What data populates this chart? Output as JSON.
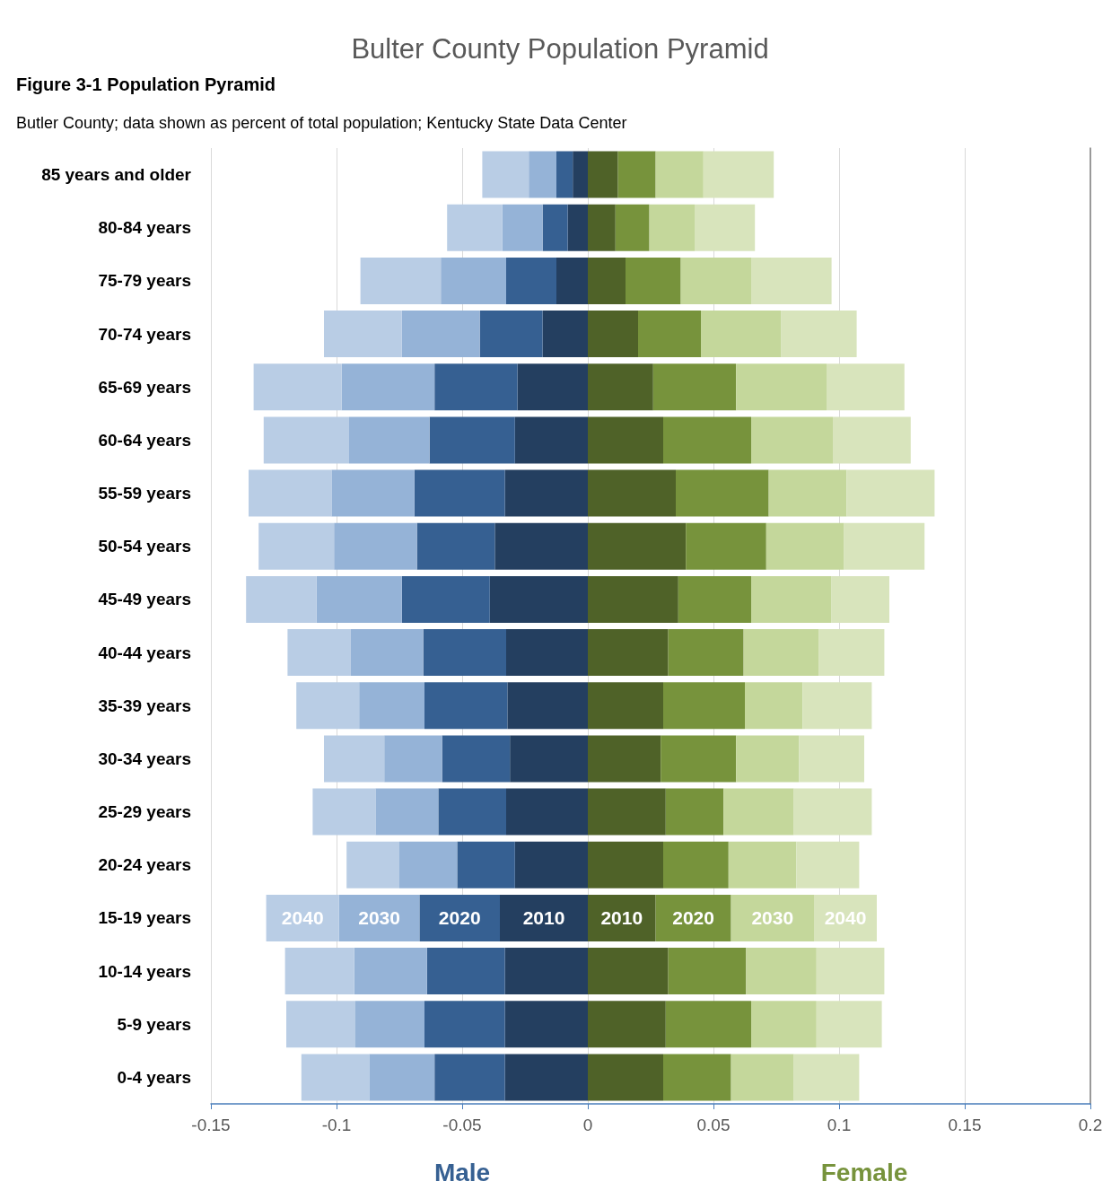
{
  "chart_data": {
    "type": "bar",
    "orientation": "horizontal",
    "stacked": true,
    "title": "Bulter County Population Pyramid",
    "subtitle": "Figure 3-1 Population Pyramid",
    "categories": [
      "85 years and older",
      "80-84 years",
      "75-79 years",
      "70-74 years",
      "65-69 years",
      "60-64 years",
      "55-59 years",
      "50-54 years",
      "45-49 years",
      "40-44 years",
      "35-39 years",
      "30-34 years",
      "25-29 years",
      "20-24 years",
      "15-19 years",
      "10-14 years",
      "5-9 years",
      "0-4 years"
    ],
    "series": [
      {
        "color": "#243f60",
        "values": [
          -0.006,
          -0.008,
          -0.0125,
          -0.018,
          -0.028,
          -0.029,
          -0.033,
          -0.037,
          -0.039,
          -0.0325,
          -0.032,
          -0.031,
          -0.0325,
          -0.029,
          -0.035,
          -0.033,
          -0.033,
          -0.033
        ]
      },
      {
        "color": "#366092",
        "values": [
          -0.0065,
          -0.01,
          -0.02,
          -0.025,
          -0.033,
          -0.034,
          -0.036,
          -0.031,
          -0.035,
          -0.033,
          -0.033,
          -0.027,
          -0.027,
          -0.023,
          -0.032,
          -0.031,
          -0.032,
          -0.028
        ]
      },
      {
        "color": "#95b3d7",
        "values": [
          -0.011,
          -0.016,
          -0.026,
          -0.031,
          -0.037,
          -0.032,
          -0.033,
          -0.033,
          -0.034,
          -0.029,
          -0.026,
          -0.023,
          -0.025,
          -0.023,
          -0.032,
          -0.029,
          -0.0275,
          -0.026
        ]
      },
      {
        "color": "#b9cde5",
        "values": [
          -0.0185,
          -0.022,
          -0.032,
          -0.031,
          -0.035,
          -0.034,
          -0.033,
          -0.03,
          -0.028,
          -0.025,
          -0.025,
          -0.024,
          -0.025,
          -0.021,
          -0.029,
          -0.0275,
          -0.0275,
          -0.027
        ]
      },
      {
        "color": "#4f6228",
        "values": [
          0.012,
          0.011,
          0.015,
          0.02,
          0.026,
          0.03,
          0.035,
          0.039,
          0.036,
          0.032,
          0.03,
          0.029,
          0.031,
          0.03,
          0.027,
          0.032,
          0.031,
          0.03
        ]
      },
      {
        "color": "#77933c",
        "values": [
          0.015,
          0.0135,
          0.022,
          0.025,
          0.033,
          0.035,
          0.037,
          0.032,
          0.029,
          0.03,
          0.0325,
          0.03,
          0.023,
          0.026,
          0.03,
          0.031,
          0.034,
          0.027
        ]
      },
      {
        "color": "#c4d79b",
        "values": [
          0.019,
          0.018,
          0.028,
          0.032,
          0.036,
          0.0325,
          0.031,
          0.031,
          0.032,
          0.03,
          0.023,
          0.025,
          0.028,
          0.027,
          0.033,
          0.028,
          0.026,
          0.025
        ]
      },
      {
        "color": "#d8e4bc",
        "values": [
          0.028,
          0.024,
          0.032,
          0.03,
          0.031,
          0.031,
          0.035,
          0.032,
          0.023,
          0.026,
          0.0275,
          0.026,
          0.031,
          0.025,
          0.025,
          0.027,
          0.026,
          0.026
        ]
      }
    ],
    "xlim": [
      -0.15,
      0.2
    ],
    "xticks": [
      -0.15,
      -0.1,
      -0.05,
      0,
      0.05,
      0.1,
      0.15,
      0.2
    ],
    "grid": "x",
    "annotations": [
      "Butler County; data shown as percent of total population; Kentucky State Data Center",
      "Male",
      "Female",
      {
        "text": "2040",
        "x": -0.1135,
        "y": "15-19 years"
      },
      {
        "text": "2030",
        "x": -0.083,
        "y": "15-19 years"
      },
      {
        "text": "2020",
        "x": -0.051,
        "y": "15-19 years"
      },
      {
        "text": "2010",
        "x": -0.0175,
        "y": "15-19 years"
      },
      {
        "text": "2010",
        "x": 0.0135,
        "y": "15-19 years"
      },
      {
        "text": "2020",
        "x": 0.042,
        "y": "15-19 years"
      },
      {
        "text": "2030",
        "x": 0.0735,
        "y": "15-19 years"
      },
      {
        "text": "2040",
        "x": 0.1025,
        "y": "15-19 years"
      }
    ]
  }
}
